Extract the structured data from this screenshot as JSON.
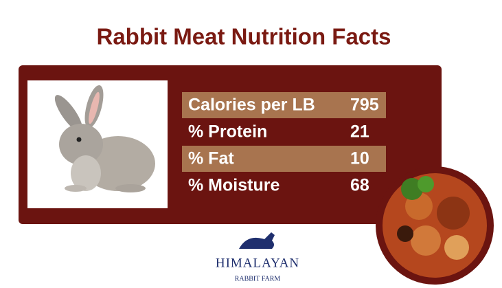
{
  "header": {
    "title": "Rabbit Meat Nutrition Facts"
  },
  "table": {
    "rows": [
      [
        "Calories per LB",
        795
      ],
      [
        "% Protein",
        21
      ],
      [
        "% Fat",
        10
      ],
      [
        "% Moisture",
        68
      ]
    ]
  },
  "logo": {
    "name": "HIMALAYAN",
    "subtitle": "RABBIT FARM"
  }
}
